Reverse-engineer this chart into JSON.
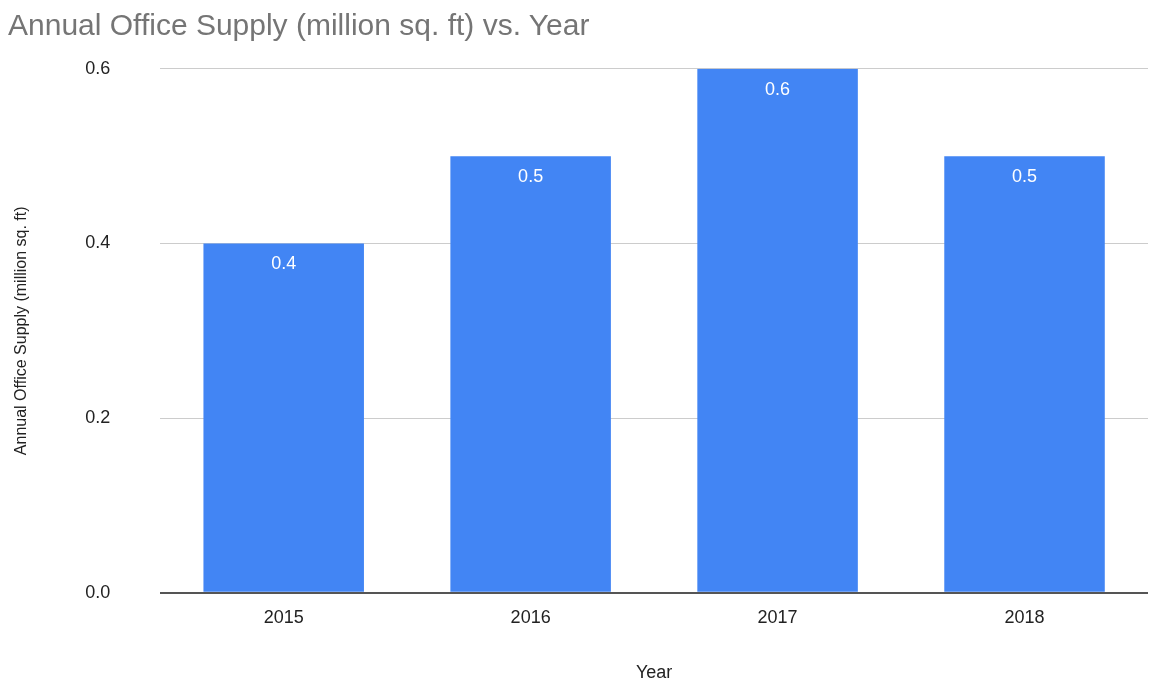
{
  "chart_data": {
    "type": "bar",
    "title": "Annual Office Supply (million sq. ft) vs. Year",
    "xlabel": "Year",
    "ylabel": "Annual Office Supply (million sq. ft)",
    "categories": [
      "2015",
      "2016",
      "2017",
      "2018"
    ],
    "values": [
      0.4,
      0.5,
      0.6,
      0.5
    ],
    "color": "#4285f4",
    "ylim": [
      0,
      0.6
    ],
    "yticks": [
      {
        "value": 0,
        "label": "0.0"
      },
      0.2,
      0.4,
      0.6
    ],
    "grid": "y",
    "data_labels": true,
    "legend": false
  }
}
